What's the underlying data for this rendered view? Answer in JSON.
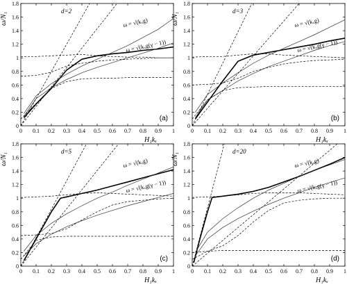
{
  "chart_data": [
    {
      "type": "line",
      "panel": "(a)",
      "d_label": "d=2",
      "xlabel": "H₁kₓ",
      "ylabel": "ω/N₁",
      "xlim": [
        0,
        1
      ],
      "ylim": [
        0,
        1.8
      ],
      "x_ticks": [
        "0",
        "0.1",
        "0.2",
        "0.3",
        "0.4",
        "0.5",
        "0.6",
        "0.7",
        "0.8",
        "0.9",
        "1"
      ],
      "y_ticks": [
        "0",
        "0.2",
        "0.4",
        "0.6",
        "0.8",
        "1",
        "1.2",
        "1.4",
        "1.6",
        "1.8"
      ],
      "annotations": [
        "ω = √(kₓg)",
        "ω = √(kₓg(γ − 1))"
      ],
      "series": [
        {
          "style": "thick",
          "x": [
            0.02,
            0.1,
            0.2,
            0.3,
            0.4,
            0.5,
            0.6,
            0.7,
            0.8,
            0.9,
            1.0
          ],
          "y": [
            0.12,
            0.32,
            0.55,
            0.82,
            0.98,
            1.03,
            1.06,
            1.08,
            1.11,
            1.13,
            1.16
          ]
        },
        {
          "style": "thin",
          "x": [
            0.02,
            0.1,
            0.2,
            0.3,
            0.4,
            0.5,
            0.6,
            0.7,
            0.8,
            0.9,
            1.0
          ],
          "y": [
            0.18,
            0.44,
            0.62,
            0.76,
            0.88,
            0.98,
            1.08,
            1.18,
            1.3,
            1.42,
            1.58
          ]
        },
        {
          "style": "thin",
          "x": [
            0.02,
            0.1,
            0.2,
            0.3,
            0.4,
            0.5,
            0.6,
            0.7,
            0.8,
            0.9,
            1.0
          ],
          "y": [
            0.14,
            0.4,
            0.56,
            0.68,
            0.78,
            0.86,
            0.93,
            1.0,
            1.07,
            1.14,
            1.22
          ]
        },
        {
          "style": "dashed",
          "x": [
            0.0,
            0.45
          ],
          "y": [
            0.0,
            1.8
          ]
        },
        {
          "style": "dashed",
          "x": [
            0.0,
            0.63
          ],
          "y": [
            0.0,
            1.8
          ]
        },
        {
          "style": "dashed",
          "x": [
            0.0,
            0.1,
            0.2,
            0.3,
            0.4,
            0.5,
            0.6,
            0.7,
            0.8,
            0.9,
            1.0
          ],
          "y": [
            1.02,
            1.02,
            1.03,
            1.04,
            1.05,
            1.03,
            1.02,
            1.01,
            1.01,
            1.0,
            1.0
          ]
        },
        {
          "style": "dashed",
          "x": [
            0.0,
            0.1,
            0.2,
            0.3,
            0.4,
            0.5,
            0.6,
            0.7,
            0.8,
            0.9,
            1.0
          ],
          "y": [
            0.73,
            0.74,
            0.79,
            0.88,
            0.92,
            0.95,
            0.97,
            0.98,
            0.99,
            1.0,
            1.0
          ]
        },
        {
          "style": "dashed",
          "x": [
            0.0,
            0.1,
            0.2,
            0.3,
            0.4,
            0.5,
            0.6,
            0.7,
            0.8,
            0.9,
            1.0
          ],
          "y": [
            0.1,
            0.33,
            0.55,
            0.65,
            0.69,
            0.7,
            0.7,
            0.71,
            0.71,
            0.71,
            0.71
          ]
        }
      ]
    },
    {
      "type": "line",
      "panel": "(b)",
      "d_label": "d=3",
      "xlabel": "H₁kₓ",
      "ylabel": "ω/N₁",
      "xlim": [
        0,
        1
      ],
      "ylim": [
        0,
        1.8
      ],
      "x_ticks": [
        "0",
        "0.1",
        "0.2",
        "0.3",
        "0.4",
        "0.5",
        "0.6",
        "0.7",
        "0.8",
        "0.9",
        "1"
      ],
      "y_ticks": [
        "0",
        "0.2",
        "0.4",
        "0.6",
        "0.8",
        "1",
        "1.2",
        "1.4",
        "1.6",
        "1.8"
      ],
      "annotations": [
        "ω = √(kₓg)",
        "ω = √(kₓg(γ − 1))"
      ],
      "series": [
        {
          "style": "thick",
          "x": [
            0.02,
            0.1,
            0.2,
            0.3,
            0.4,
            0.5,
            0.6,
            0.7,
            0.8,
            0.9,
            1.0
          ],
          "y": [
            0.1,
            0.35,
            0.66,
            0.95,
            1.04,
            1.08,
            1.12,
            1.16,
            1.2,
            1.25,
            1.29
          ]
        },
        {
          "style": "thin",
          "x": [
            0.02,
            0.1,
            0.2,
            0.3,
            0.4,
            0.5,
            0.6,
            0.7,
            0.8,
            0.9,
            1.0
          ],
          "y": [
            0.2,
            0.46,
            0.63,
            0.78,
            0.92,
            1.04,
            1.14,
            1.24,
            1.34,
            1.45,
            1.56
          ]
        },
        {
          "style": "thin",
          "x": [
            0.02,
            0.1,
            0.2,
            0.3,
            0.4,
            0.5,
            0.6,
            0.7,
            0.8,
            0.9,
            1.0
          ],
          "y": [
            0.12,
            0.38,
            0.52,
            0.66,
            0.77,
            0.87,
            0.95,
            1.03,
            1.11,
            1.18,
            1.24
          ]
        },
        {
          "style": "dashed",
          "x": [
            0.0,
            0.39
          ],
          "y": [
            0.0,
            1.8
          ]
        },
        {
          "style": "dashed",
          "x": [
            0.0,
            0.7
          ],
          "y": [
            0.0,
            1.8
          ]
        },
        {
          "style": "dashed",
          "x": [
            0.0,
            0.1,
            0.2,
            0.3,
            0.4,
            0.5,
            0.6,
            0.7,
            0.8,
            0.9,
            1.0
          ],
          "y": [
            1.01,
            1.02,
            1.02,
            1.04,
            1.06,
            1.06,
            1.04,
            1.03,
            1.02,
            1.01,
            1.0
          ]
        },
        {
          "style": "dashed",
          "x": [
            0.0,
            0.1,
            0.2,
            0.3,
            0.4,
            0.5,
            0.6,
            0.7,
            0.8,
            0.9,
            1.0
          ],
          "y": [
            0.6,
            0.61,
            0.63,
            0.7,
            0.8,
            0.86,
            0.91,
            0.94,
            0.96,
            0.97,
            0.98
          ]
        },
        {
          "style": "dashed",
          "x": [
            0.0,
            0.1,
            0.2,
            0.3,
            0.4,
            0.5,
            0.6,
            0.7,
            0.8,
            0.9,
            1.0
          ],
          "y": [
            0.1,
            0.38,
            0.52,
            0.56,
            0.57,
            0.58,
            0.58,
            0.58,
            0.58,
            0.58,
            0.58
          ]
        }
      ]
    },
    {
      "type": "line",
      "panel": "(c)",
      "d_label": "d=5",
      "xlabel": "H₁kₓ",
      "ylabel": "ω/N₁",
      "xlim": [
        0,
        1
      ],
      "ylim": [
        0,
        1.8
      ],
      "x_ticks": [
        "0",
        "0.1",
        "0.2",
        "0.3",
        "0.4",
        "0.5",
        "0.6",
        "0.7",
        "0.8",
        "0.9",
        "1"
      ],
      "y_ticks": [
        "0",
        "0.2",
        "0.4",
        "0.6",
        "0.8",
        "1",
        "1.2",
        "1.4",
        "1.6",
        "1.8"
      ],
      "annotations": [
        "ω = √(kₓg)",
        "ω = √(kₓg(γ − 1))"
      ],
      "series": [
        {
          "style": "thick",
          "x": [
            0.02,
            0.1,
            0.2,
            0.26,
            0.3,
            0.4,
            0.5,
            0.6,
            0.7,
            0.8,
            0.9,
            1.0
          ],
          "y": [
            0.08,
            0.4,
            0.8,
            1.0,
            1.02,
            1.07,
            1.12,
            1.18,
            1.24,
            1.3,
            1.36,
            1.42
          ]
        },
        {
          "style": "thin",
          "x": [
            0.02,
            0.1,
            0.2,
            0.3,
            0.4,
            0.5,
            0.6,
            0.7,
            0.8,
            0.9,
            1.0
          ],
          "y": [
            0.22,
            0.45,
            0.63,
            0.77,
            0.89,
            1.0,
            1.09,
            1.19,
            1.28,
            1.37,
            1.46
          ]
        },
        {
          "style": "thin",
          "x": [
            0.02,
            0.1,
            0.2,
            0.3,
            0.4,
            0.5,
            0.6,
            0.7,
            0.8,
            0.9,
            1.0
          ],
          "y": [
            0.15,
            0.33,
            0.47,
            0.58,
            0.67,
            0.75,
            0.82,
            0.89,
            0.95,
            1.01,
            1.07
          ]
        },
        {
          "style": "dashed",
          "x": [
            0.0,
            0.43
          ],
          "y": [
            0.0,
            1.8
          ]
        },
        {
          "style": "dashed",
          "x": [
            0.0,
            0.64
          ],
          "y": [
            0.0,
            1.8
          ]
        },
        {
          "style": "dashed",
          "x": [
            0.0,
            0.1,
            0.2,
            0.3,
            0.4,
            0.5,
            0.6,
            0.7,
            0.8,
            0.9,
            1.0
          ],
          "y": [
            1.01,
            1.02,
            1.03,
            1.05,
            1.07,
            1.08,
            1.07,
            1.06,
            1.05,
            1.04,
            1.03
          ]
        },
        {
          "style": "dashed",
          "x": [
            0.0,
            0.1,
            0.2,
            0.3,
            0.4,
            0.5,
            0.6,
            0.7,
            0.8,
            0.9,
            1.0
          ],
          "y": [
            0.45,
            0.46,
            0.48,
            0.55,
            0.68,
            0.8,
            0.9,
            0.95,
            0.97,
            0.99,
            1.0
          ]
        },
        {
          "style": "dashed",
          "x": [
            0.0,
            0.1,
            0.2,
            0.3,
            0.4,
            0.5,
            0.6,
            0.7,
            0.8,
            0.9,
            1.0
          ],
          "y": [
            0.1,
            0.38,
            0.43,
            0.44,
            0.44,
            0.44,
            0.44,
            0.44,
            0.44,
            0.44,
            0.44
          ]
        }
      ]
    },
    {
      "type": "line",
      "panel": "(d)",
      "d_label": "d=20",
      "xlabel": "H₁kₓ",
      "ylabel": "ω/N₁",
      "xlim": [
        0,
        1
      ],
      "ylim": [
        0,
        1.8
      ],
      "x_ticks": [
        "0",
        "0.1",
        "0.2",
        "0.3",
        "0.4",
        "0.5",
        "0.6",
        "0.7",
        "0.8",
        "0.9",
        "1"
      ],
      "y_ticks": [
        "0",
        "0.2",
        "0.4",
        "0.6",
        "0.8",
        "1",
        "1.2",
        "1.4",
        "1.6",
        "1.8"
      ],
      "annotations": [
        "ω = √(kₓg)",
        "ω = √(kₓg(γ − 1))"
      ],
      "series": [
        {
          "style": "thick",
          "x": [
            0.01,
            0.05,
            0.1,
            0.13,
            0.2,
            0.3,
            0.4,
            0.5,
            0.6,
            0.7,
            0.8,
            0.9,
            1.0
          ],
          "y": [
            0.05,
            0.4,
            0.8,
            1.01,
            1.03,
            1.06,
            1.1,
            1.16,
            1.24,
            1.32,
            1.41,
            1.5,
            1.6
          ]
        },
        {
          "style": "thin",
          "x": [
            0.02,
            0.1,
            0.2,
            0.3,
            0.4,
            0.5,
            0.6,
            0.7,
            0.8,
            0.9,
            1.0
          ],
          "y": [
            0.2,
            0.5,
            0.7,
            0.86,
            1.0,
            1.12,
            1.22,
            1.32,
            1.41,
            1.49,
            1.57
          ]
        },
        {
          "style": "thin",
          "x": [
            0.02,
            0.1,
            0.2,
            0.3,
            0.4,
            0.5,
            0.6,
            0.7,
            0.8,
            0.9,
            1.0
          ],
          "y": [
            0.15,
            0.4,
            0.57,
            0.7,
            0.81,
            0.91,
            1.0,
            1.08,
            1.16,
            1.23,
            1.3
          ]
        },
        {
          "style": "dashed",
          "x": [
            0.0,
            0.21
          ],
          "y": [
            0.0,
            1.8
          ]
        },
        {
          "style": "dashed",
          "x": [
            0.0,
            0.95
          ],
          "y": [
            0.0,
            1.8
          ]
        },
        {
          "style": "dashed",
          "x": [
            0.0,
            0.1,
            0.2,
            0.3,
            0.4,
            0.5,
            0.6,
            0.7,
            0.8,
            0.9,
            1.0
          ],
          "y": [
            1.01,
            1.02,
            1.03,
            1.05,
            1.07,
            1.08,
            1.08,
            1.08,
            1.07,
            1.06,
            1.05
          ]
        },
        {
          "style": "dashed",
          "x": [
            0.0,
            0.1,
            0.2,
            0.3,
            0.4,
            0.5,
            0.6,
            0.7,
            0.8,
            0.9,
            1.0
          ],
          "y": [
            0.2,
            0.22,
            0.3,
            0.45,
            0.65,
            0.82,
            0.93,
            0.97,
            0.99,
            1.0,
            1.0
          ]
        },
        {
          "style": "dashed",
          "x": [
            0.0,
            0.1,
            0.2,
            0.3,
            0.4,
            0.5,
            0.6,
            0.7,
            0.8,
            0.9,
            1.0
          ],
          "y": [
            0.1,
            0.22,
            0.23,
            0.23,
            0.23,
            0.23,
            0.23,
            0.23,
            0.23,
            0.23,
            0.23
          ]
        }
      ]
    }
  ]
}
